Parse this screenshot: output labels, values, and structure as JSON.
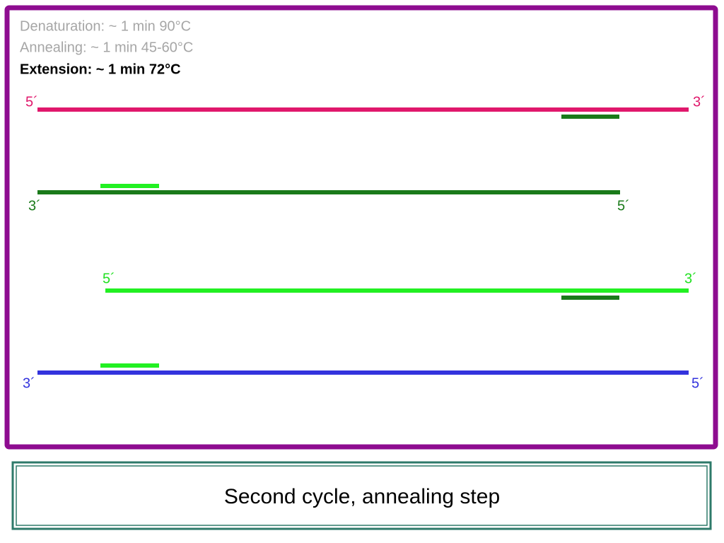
{
  "steps": [
    "Denaturation: ~ 1 min 90°C",
    "Annealing: ~ 1 min 45-60°C",
    "Extension: ~ 1 min 72°C"
  ],
  "strands": [
    {
      "left_label": "5´",
      "right_label": "3´"
    },
    {
      "left_label": "3´",
      "right_label": "5´"
    },
    {
      "left_label": "5´",
      "right_label": "3´"
    },
    {
      "left_label": "3´",
      "right_label": "5´"
    }
  ],
  "caption": "Second cycle, annealing step"
}
